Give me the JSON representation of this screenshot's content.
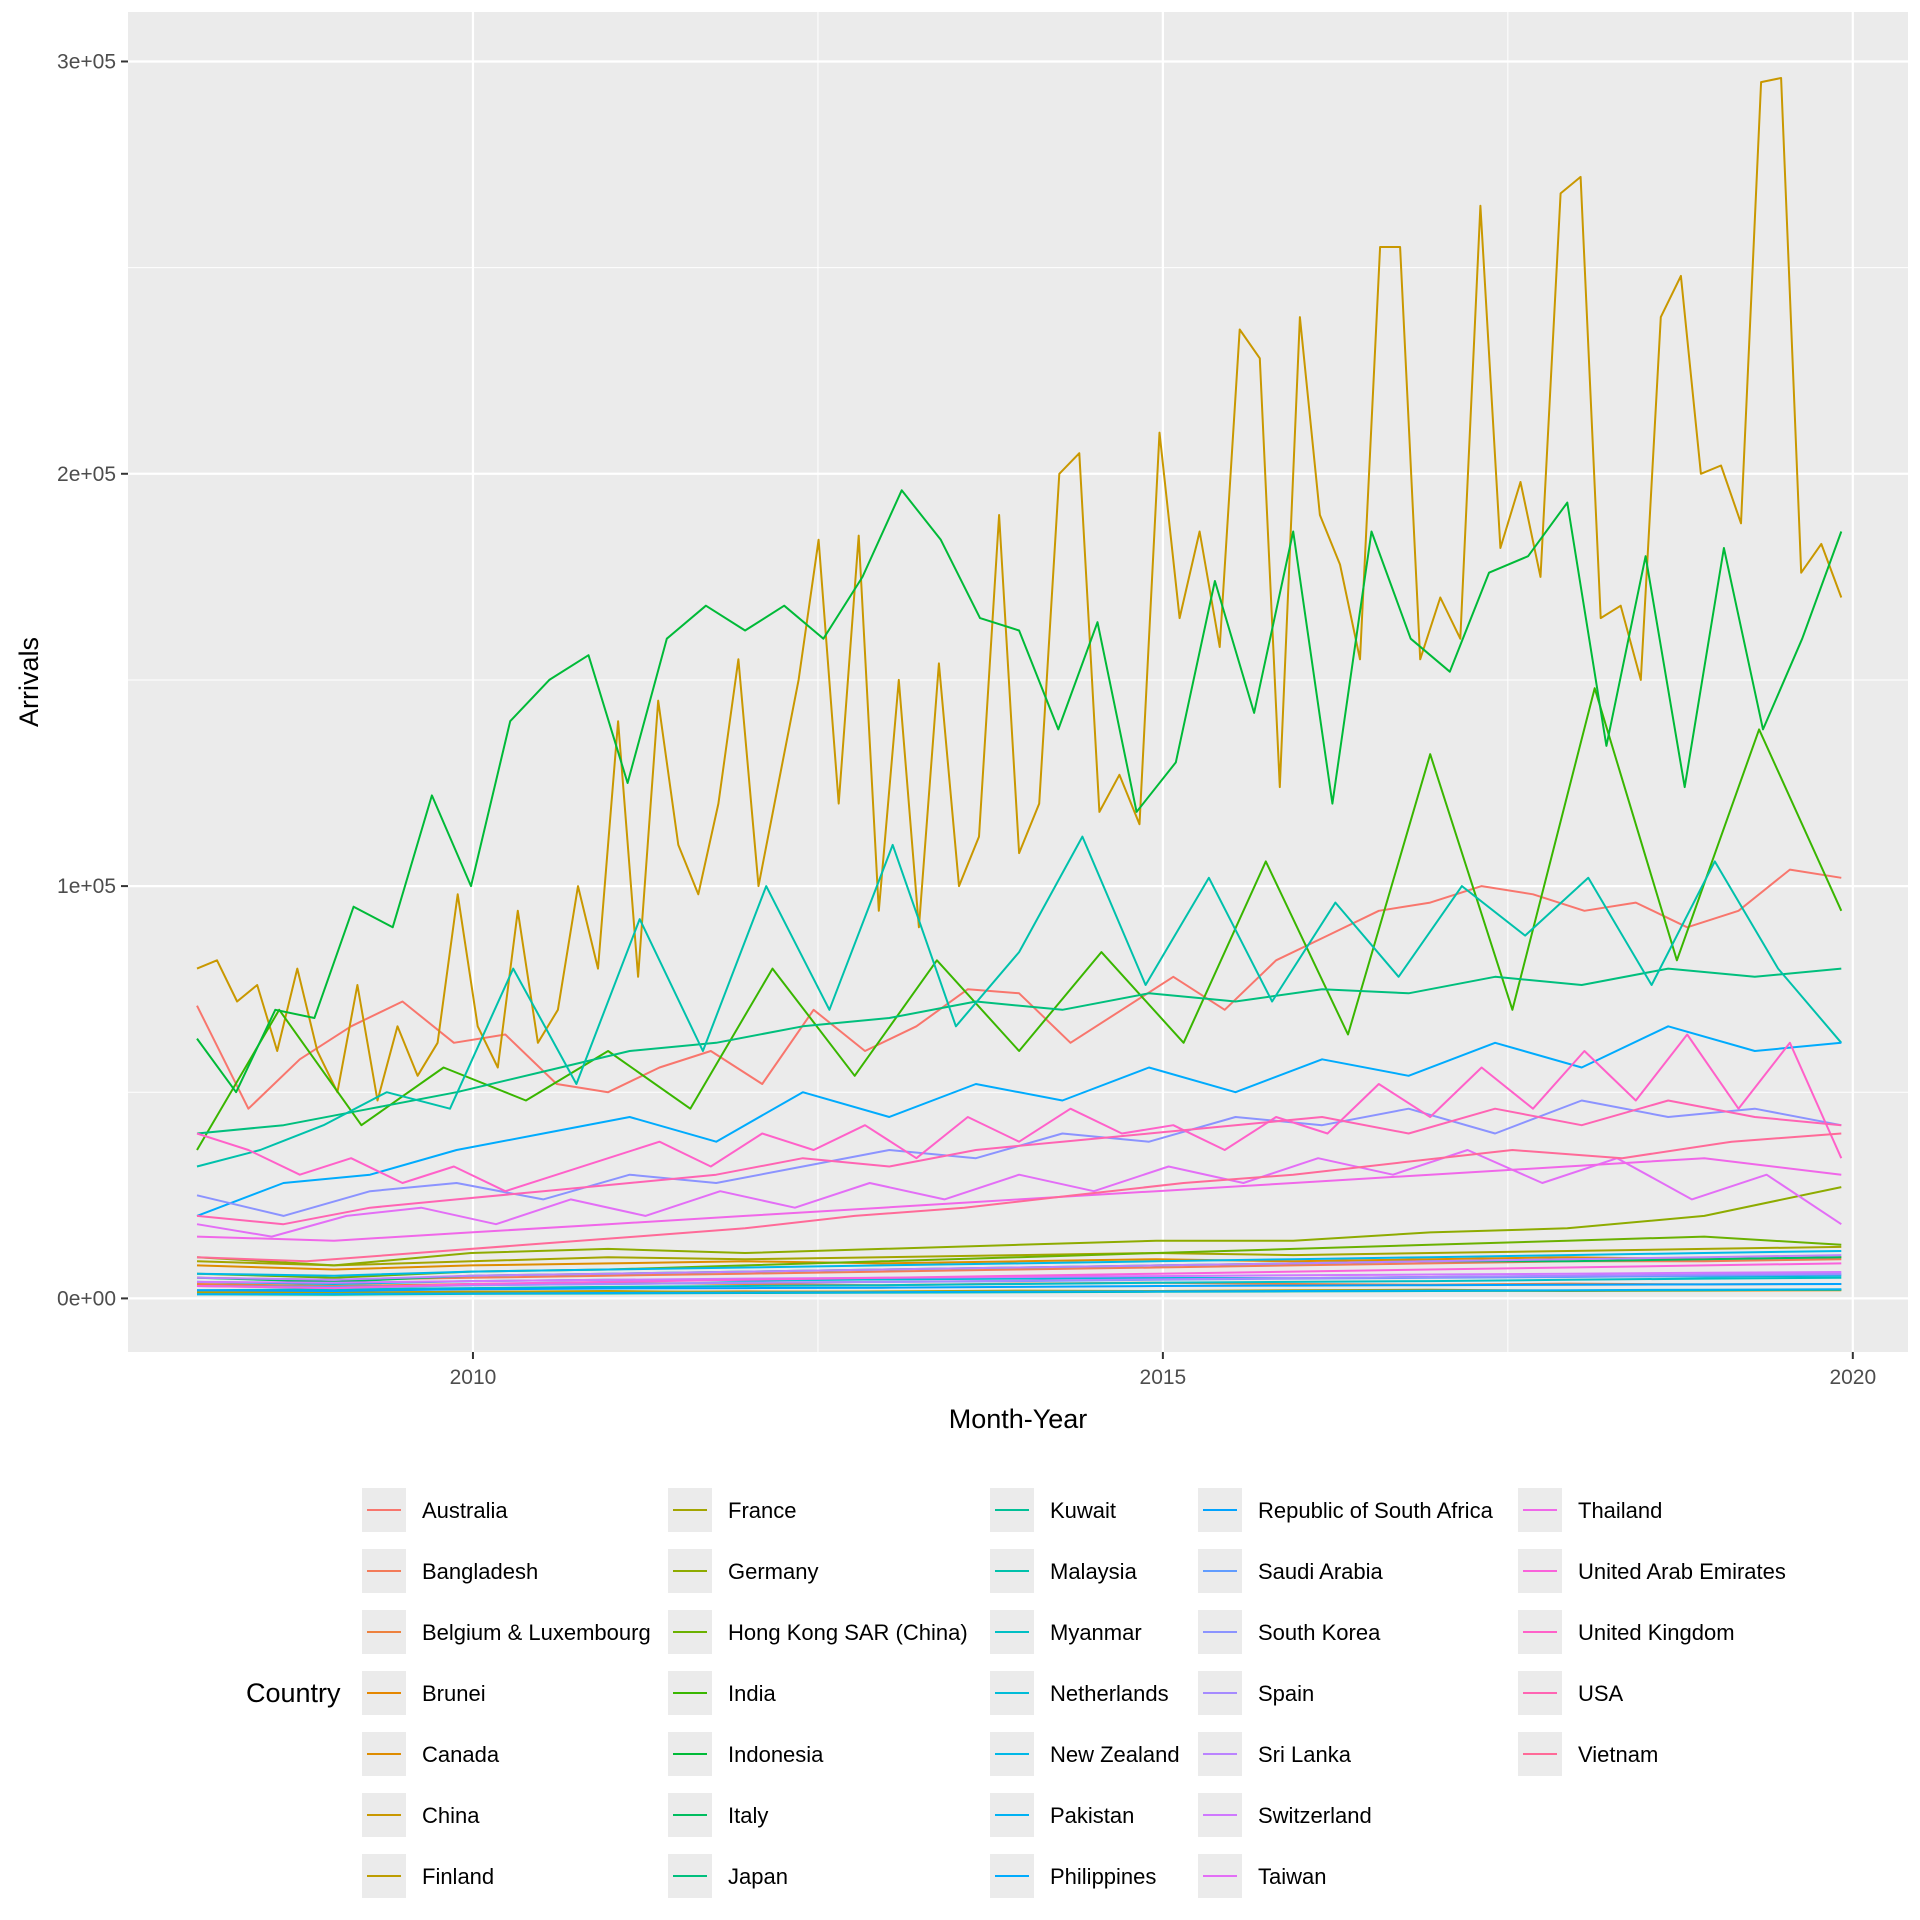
{
  "chart_data": {
    "type": "line",
    "title": "",
    "xlabel": "Month-Year",
    "ylabel": "Arrivals",
    "xlim": [
      2007.5,
      2020.4
    ],
    "ylim": [
      -13000,
      312000
    ],
    "x_ticks": [
      {
        "value": 2010,
        "label": "2010"
      },
      {
        "value": 2015,
        "label": "2015"
      },
      {
        "value": 2020,
        "label": "2020"
      }
    ],
    "y_ticks": [
      {
        "value": 0,
        "label": "0e+00"
      },
      {
        "value": 100000,
        "label": "1e+05"
      },
      {
        "value": 200000,
        "label": "2e+05"
      },
      {
        "value": 300000,
        "label": "3e+05"
      }
    ],
    "grid": true,
    "legend": {
      "title": "Country",
      "position": "bottom",
      "columns": 5,
      "rows_per_column": 7
    },
    "x_start": "2008-01",
    "x_end": "2019-12",
    "series": [
      {
        "name": "Australia",
        "color": "#F8766D",
        "values": [
          71000,
          46000,
          58000,
          66000,
          72000,
          62000,
          64000,
          52000,
          50000,
          56000,
          60000,
          52000,
          70000,
          60000,
          66000,
          75000,
          74000,
          62000,
          70000,
          78000,
          70000,
          82000,
          88000,
          94000,
          96000,
          100000,
          98000,
          94000,
          96000,
          90000,
          94000,
          104000,
          102000
        ]
      },
      {
        "name": "Bangladesh",
        "color": "#F37B59",
        "values": [
          5000,
          4500,
          5000,
          5500,
          6000,
          6500,
          7000,
          7500,
          8000,
          8500,
          9000,
          9000,
          9500
        ]
      },
      {
        "name": "Belgium & Luxembourg",
        "color": "#ED813E",
        "values": [
          3500,
          3000,
          3500,
          3800,
          3500,
          3200,
          3600,
          3800,
          3500,
          3300,
          3600,
          3400,
          3500
        ]
      },
      {
        "name": "Brunei",
        "color": "#E58700",
        "values": [
          1500,
          1400,
          1600,
          1500,
          1700,
          1600,
          1800,
          1700,
          1800,
          1900,
          1800,
          1900,
          2000
        ]
      },
      {
        "name": "Canada",
        "color": "#DE8C00",
        "values": [
          8000,
          7000,
          8000,
          8500,
          9000,
          8500,
          9000,
          9500,
          9000,
          9500,
          10000,
          9500,
          10000
        ]
      },
      {
        "name": "China",
        "color": "#C99800",
        "values": [
          80000,
          82000,
          72000,
          76000,
          60000,
          80000,
          60000,
          50000,
          76000,
          48000,
          66000,
          54000,
          62000,
          98000,
          66000,
          56000,
          94000,
          62000,
          70000,
          100000,
          80000,
          140000,
          78000,
          145000,
          110000,
          98000,
          120000,
          155000,
          100000,
          125000,
          150000,
          184000,
          120000,
          185000,
          94000,
          150000,
          90000,
          154000,
          100000,
          112000,
          190000,
          108000,
          120000,
          200000,
          205000,
          118000,
          127000,
          115000,
          210000,
          165000,
          186000,
          158000,
          235000,
          228000,
          124000,
          238000,
          190000,
          178000,
          155000,
          255000,
          255000,
          155000,
          170000,
          160000,
          265000,
          182000,
          198000,
          175000,
          268000,
          272000,
          165000,
          168000,
          150000,
          238000,
          248000,
          200000,
          202000,
          188000,
          295000,
          296000,
          176000,
          183000,
          170000
        ]
      },
      {
        "name": "Finland",
        "color": "#BD9D00",
        "values": [
          1500,
          1400,
          1600,
          1800,
          1500,
          1700,
          1900,
          1800,
          2000,
          2100,
          1900,
          2000,
          2100
        ]
      },
      {
        "name": "France",
        "color": "#A3A500",
        "values": [
          9000,
          8000,
          9000,
          10000,
          9500,
          10000,
          10500,
          11000,
          10500,
          11000,
          11500,
          12000,
          12500
        ]
      },
      {
        "name": "Germany",
        "color": "#8EAB00",
        "values": [
          10000,
          8000,
          11000,
          12000,
          11000,
          12000,
          13000,
          14000,
          14000,
          16000,
          17000,
          20000,
          27000
        ]
      },
      {
        "name": "Hong Kong SAR (China)",
        "color": "#6BB100",
        "values": [
          6000,
          5000,
          6500,
          7000,
          8000,
          9000,
          10000,
          11000,
          12000,
          13000,
          14000,
          15000,
          13000
        ]
      },
      {
        "name": "India",
        "color": "#39B600",
        "values": [
          36000,
          70000,
          42000,
          56000,
          48000,
          60000,
          46000,
          80000,
          54000,
          82000,
          60000,
          84000,
          62000,
          106000,
          64000,
          132000,
          70000,
          148000,
          82000,
          138000,
          94000
        ]
      },
      {
        "name": "Indonesia",
        "color": "#00BA38",
        "values": [
          63000,
          50000,
          70000,
          68000,
          95000,
          90000,
          122000,
          100000,
          140000,
          150000,
          156000,
          125000,
          160000,
          168000,
          162000,
          168000,
          160000,
          175000,
          196000,
          184000,
          165000,
          162000,
          138000,
          164000,
          118000,
          130000,
          174000,
          142000,
          186000,
          120000,
          186000,
          160000,
          152000,
          176000,
          180000,
          193000,
          134000,
          180000,
          124000,
          182000,
          138000,
          160000,
          186000
        ]
      },
      {
        "name": "Italy",
        "color": "#00BD5F",
        "values": [
          5000,
          4000,
          5500,
          6000,
          6500,
          7000,
          7500,
          8000,
          8500,
          9000,
          9000,
          9500,
          10000
        ]
      },
      {
        "name": "Japan",
        "color": "#00BF7D",
        "values": [
          40000,
          42000,
          46000,
          50000,
          55000,
          60000,
          62000,
          66000,
          68000,
          72000,
          70000,
          74000,
          72000,
          75000,
          74000,
          78000,
          76000,
          80000,
          78000,
          80000
        ]
      },
      {
        "name": "Kuwait",
        "color": "#00C097",
        "values": [
          1000,
          900,
          1100,
          1200,
          1300,
          1400,
          1500,
          1600,
          1700,
          1800,
          1900,
          2000,
          2100
        ]
      },
      {
        "name": "Malaysia",
        "color": "#00C1AB",
        "values": [
          32000,
          36000,
          42000,
          50000,
          46000,
          80000,
          52000,
          92000,
          60000,
          100000,
          70000,
          110000,
          66000,
          84000,
          112000,
          76000,
          102000,
          72000,
          96000,
          78000,
          100000,
          88000,
          102000,
          76000,
          106000,
          80000,
          62000
        ]
      },
      {
        "name": "Myanmar",
        "color": "#00BFC4",
        "values": [
          2000,
          2200,
          2500,
          2800,
          3000,
          3200,
          3500,
          3800,
          4000,
          4200,
          4500,
          4800,
          5000
        ]
      },
      {
        "name": "Netherlands",
        "color": "#00BCD8",
        "values": [
          4000,
          3500,
          4200,
          4500,
          4300,
          4600,
          4800,
          5000,
          4900,
          5200,
          5400,
          5300,
          5500
        ]
      },
      {
        "name": "New Zealand",
        "color": "#00B8E7",
        "values": [
          6000,
          5500,
          6500,
          7000,
          7500,
          8000,
          8500,
          9000,
          9500,
          10000,
          10500,
          11000,
          11500
        ]
      },
      {
        "name": "Pakistan",
        "color": "#00B2F3",
        "values": [
          1000,
          1100,
          1200,
          1300,
          1400,
          1500,
          1600,
          1700,
          1800,
          1900,
          2000,
          2100,
          2200
        ]
      },
      {
        "name": "Philippines",
        "color": "#00ABFD",
        "values": [
          20000,
          28000,
          30000,
          36000,
          40000,
          44000,
          38000,
          50000,
          44000,
          52000,
          48000,
          56000,
          50000,
          58000,
          54000,
          62000,
          56000,
          66000,
          60000,
          62000
        ]
      },
      {
        "name": "Republic of South Africa",
        "color": "#00A3FF",
        "values": [
          2000,
          1800,
          2200,
          2400,
          2500,
          2600,
          2800,
          3000,
          3100,
          3200,
          3300,
          3400,
          3500
        ]
      },
      {
        "name": "Saudi Arabia",
        "color": "#619CFF",
        "values": [
          3000,
          2800,
          3200,
          3500,
          3800,
          4000,
          4200,
          4500,
          4800,
          5000,
          5200,
          5500,
          5800
        ]
      },
      {
        "name": "South Korea",
        "color": "#8B93FF",
        "values": [
          25000,
          20000,
          26000,
          28000,
          24000,
          30000,
          28000,
          32000,
          36000,
          34000,
          40000,
          38000,
          44000,
          42000,
          46000,
          40000,
          48000,
          44000,
          46000,
          42000
        ]
      },
      {
        "name": "Spain",
        "color": "#A58AFF",
        "values": [
          3000,
          2500,
          3200,
          3500,
          3800,
          4000,
          4300,
          4600,
          4900,
          5200,
          5500,
          5800,
          6000
        ]
      },
      {
        "name": "Sri Lanka",
        "color": "#BA83FF",
        "values": [
          5000,
          4500,
          5500,
          6000,
          6500,
          7000,
          7500,
          8000,
          8500,
          9000,
          9500,
          10000,
          10500
        ]
      },
      {
        "name": "Switzerland",
        "color": "#CF78FF",
        "values": [
          4000,
          3800,
          4200,
          4500,
          4800,
          5000,
          5200,
          5400,
          5600,
          5800,
          6000,
          6200,
          6400
        ]
      },
      {
        "name": "Taiwan",
        "color": "#E36EF6",
        "values": [
          18000,
          15000,
          20000,
          22000,
          18000,
          24000,
          20000,
          26000,
          22000,
          28000,
          24000,
          30000,
          26000,
          32000,
          28000,
          34000,
          30000,
          36000,
          28000,
          34000,
          24000,
          30000,
          18000
        ]
      },
      {
        "name": "Thailand",
        "color": "#F067E9",
        "values": [
          15000,
          14000,
          16000,
          18000,
          20000,
          22000,
          24000,
          26000,
          28000,
          30000,
          32000,
          34000,
          30000
        ]
      },
      {
        "name": "United Arab Emirates",
        "color": "#FA62DB",
        "values": [
          3000,
          2500,
          3500,
          4000,
          4500,
          5000,
          5500,
          6000,
          6500,
          7000,
          7500,
          8000,
          8500
        ]
      },
      {
        "name": "United Kingdom",
        "color": "#FF61C9",
        "values": [
          40000,
          36000,
          30000,
          34000,
          28000,
          32000,
          26000,
          30000,
          34000,
          38000,
          32000,
          40000,
          36000,
          42000,
          34000,
          44000,
          38000,
          46000,
          40000,
          42000,
          36000,
          44000,
          40000,
          52000,
          44000,
          56000,
          46000,
          60000,
          48000,
          64000,
          46000,
          62000,
          34000
        ]
      },
      {
        "name": "USA",
        "color": "#FF64B3",
        "values": [
          20000,
          18000,
          22000,
          24000,
          26000,
          28000,
          30000,
          34000,
          32000,
          36000,
          38000,
          40000,
          42000,
          44000,
          40000,
          46000,
          42000,
          48000,
          44000,
          42000
        ]
      },
      {
        "name": "Vietnam",
        "color": "#FF6A98",
        "values": [
          10000,
          9000,
          11000,
          13000,
          15000,
          17000,
          20000,
          22000,
          25000,
          28000,
          30000,
          33000,
          36000,
          34000,
          38000,
          40000
        ]
      }
    ]
  }
}
